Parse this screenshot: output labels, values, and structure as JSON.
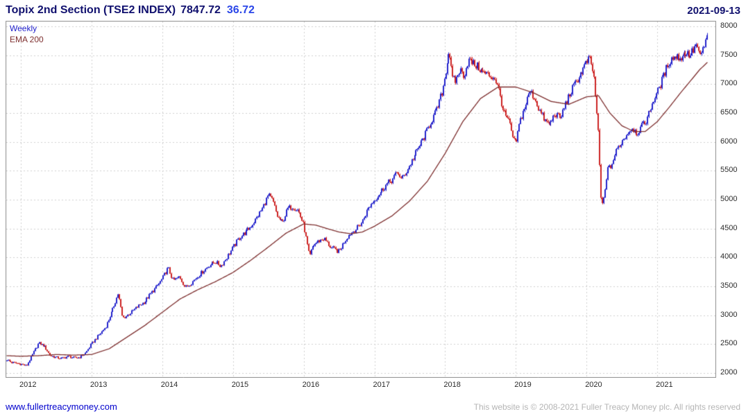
{
  "header": {
    "title": "Topix 2nd Section (TSE2 INDEX)",
    "last_price": "7847.72",
    "change": "36.72",
    "date": "2021-09-13"
  },
  "legend": {
    "series": "Weekly",
    "overlay": "EMA 200"
  },
  "footer": {
    "link": "www.fullertreacymoney.com",
    "copyright": "This website is © 2008-2021 Fuller Treacy Money plc. All rights reserved"
  },
  "colors": {
    "up": "#2222cc",
    "down": "#cc2222",
    "ema": "#7d2e2e",
    "grid": "#cfcfcf",
    "border": "#8c8c8c",
    "axis": "#2b2b2b",
    "title": "#10106e",
    "change": "#2a46e8",
    "link": "#0000cd",
    "copyright_text": "#b4b4b4"
  },
  "chart_data": {
    "type": "candlestick",
    "title": "Topix 2nd Section (TSE2 INDEX)",
    "timeframe": "Weekly",
    "overlay": "EMA 200",
    "last": 7847.72,
    "change": 36.72,
    "date": "2021-09-13",
    "ylim": [
      2000,
      8000
    ],
    "yticks": [
      2000,
      2500,
      3000,
      3500,
      4000,
      4500,
      5000,
      5500,
      6000,
      6500,
      7000,
      7500,
      8000
    ],
    "xticks": [
      2012,
      2013,
      2014,
      2015,
      2016,
      2017,
      2018,
      2019,
      2020,
      2021
    ],
    "x_range": [
      2011.8,
      2021.712
    ],
    "grid": true,
    "legend_position": "top-left",
    "price_anchors": [
      [
        2011.8,
        2230
      ],
      [
        2011.88,
        2180
      ],
      [
        2012.0,
        2160
      ],
      [
        2012.08,
        2120
      ],
      [
        2012.17,
        2330
      ],
      [
        2012.25,
        2520
      ],
      [
        2012.33,
        2470
      ],
      [
        2012.42,
        2300
      ],
      [
        2012.5,
        2270
      ],
      [
        2012.58,
        2250
      ],
      [
        2012.67,
        2290
      ],
      [
        2012.75,
        2260
      ],
      [
        2012.83,
        2270
      ],
      [
        2012.92,
        2350
      ],
      [
        2013.0,
        2500
      ],
      [
        2013.1,
        2650
      ],
      [
        2013.2,
        2800
      ],
      [
        2013.3,
        3100
      ],
      [
        2013.38,
        3380
      ],
      [
        2013.44,
        2950
      ],
      [
        2013.5,
        2990
      ],
      [
        2013.58,
        3070
      ],
      [
        2013.67,
        3170
      ],
      [
        2013.75,
        3230
      ],
      [
        2013.83,
        3360
      ],
      [
        2013.92,
        3490
      ],
      [
        2014.0,
        3630
      ],
      [
        2014.08,
        3820
      ],
      [
        2014.15,
        3600
      ],
      [
        2014.25,
        3670
      ],
      [
        2014.33,
        3480
      ],
      [
        2014.42,
        3570
      ],
      [
        2014.5,
        3670
      ],
      [
        2014.58,
        3770
      ],
      [
        2014.67,
        3870
      ],
      [
        2014.75,
        3930
      ],
      [
        2014.83,
        3850
      ],
      [
        2014.92,
        4010
      ],
      [
        2015.0,
        4170
      ],
      [
        2015.08,
        4330
      ],
      [
        2015.17,
        4430
      ],
      [
        2015.25,
        4530
      ],
      [
        2015.33,
        4670
      ],
      [
        2015.42,
        4860
      ],
      [
        2015.5,
        5080
      ],
      [
        2015.56,
        4980
      ],
      [
        2015.63,
        4700
      ],
      [
        2015.7,
        4600
      ],
      [
        2015.78,
        4850
      ],
      [
        2015.85,
        4880
      ],
      [
        2015.92,
        4820
      ],
      [
        2016.0,
        4550
      ],
      [
        2016.08,
        4000
      ],
      [
        2016.13,
        4200
      ],
      [
        2016.21,
        4280
      ],
      [
        2016.29,
        4330
      ],
      [
        2016.38,
        4180
      ],
      [
        2016.46,
        4120
      ],
      [
        2016.5,
        4100
      ],
      [
        2016.58,
        4300
      ],
      [
        2016.67,
        4420
      ],
      [
        2016.75,
        4500
      ],
      [
        2016.83,
        4620
      ],
      [
        2016.92,
        4870
      ],
      [
        2017.0,
        5000
      ],
      [
        2017.08,
        5120
      ],
      [
        2017.17,
        5260
      ],
      [
        2017.25,
        5340
      ],
      [
        2017.33,
        5480
      ],
      [
        2017.38,
        5350
      ],
      [
        2017.46,
        5500
      ],
      [
        2017.54,
        5700
      ],
      [
        2017.63,
        5900
      ],
      [
        2017.71,
        6100
      ],
      [
        2017.79,
        6320
      ],
      [
        2017.88,
        6550
      ],
      [
        2017.96,
        6880
      ],
      [
        2018.02,
        7300
      ],
      [
        2018.06,
        7620
      ],
      [
        2018.1,
        7100
      ],
      [
        2018.15,
        7050
      ],
      [
        2018.21,
        7250
      ],
      [
        2018.27,
        7150
      ],
      [
        2018.33,
        7420
      ],
      [
        2018.4,
        7350
      ],
      [
        2018.46,
        7300
      ],
      [
        2018.54,
        7200
      ],
      [
        2018.63,
        7150
      ],
      [
        2018.71,
        7100
      ],
      [
        2018.77,
        6850
      ],
      [
        2018.83,
        6500
      ],
      [
        2018.9,
        6350
      ],
      [
        2018.96,
        6050
      ],
      [
        2019.0,
        5950
      ],
      [
        2019.06,
        6350
      ],
      [
        2019.13,
        6600
      ],
      [
        2019.2,
        6880
      ],
      [
        2019.27,
        6750
      ],
      [
        2019.33,
        6550
      ],
      [
        2019.42,
        6350
      ],
      [
        2019.48,
        6300
      ],
      [
        2019.56,
        6500
      ],
      [
        2019.63,
        6400
      ],
      [
        2019.7,
        6650
      ],
      [
        2019.79,
        6900
      ],
      [
        2019.88,
        7100
      ],
      [
        2019.96,
        7280
      ],
      [
        2020.04,
        7450
      ],
      [
        2020.1,
        7200
      ],
      [
        2020.16,
        6300
      ],
      [
        2020.21,
        4850
      ],
      [
        2020.25,
        5050
      ],
      [
        2020.29,
        5500
      ],
      [
        2020.35,
        5600
      ],
      [
        2020.42,
        5850
      ],
      [
        2020.5,
        6000
      ],
      [
        2020.58,
        6150
      ],
      [
        2020.65,
        6250
      ],
      [
        2020.71,
        6150
      ],
      [
        2020.77,
        6250
      ],
      [
        2020.83,
        6350
      ],
      [
        2020.9,
        6550
      ],
      [
        2020.96,
        6750
      ],
      [
        2021.02,
        6900
      ],
      [
        2021.08,
        7100
      ],
      [
        2021.15,
        7350
      ],
      [
        2021.21,
        7450
      ],
      [
        2021.27,
        7480
      ],
      [
        2021.33,
        7450
      ],
      [
        2021.4,
        7550
      ],
      [
        2021.46,
        7500
      ],
      [
        2021.52,
        7600
      ],
      [
        2021.56,
        7700
      ],
      [
        2021.6,
        7440
      ],
      [
        2021.63,
        7550
      ],
      [
        2021.66,
        7650
      ],
      [
        2021.69,
        7750
      ],
      [
        2021.712,
        7847.72
      ]
    ],
    "ema_anchors": [
      [
        2011.8,
        2300
      ],
      [
        2012.0,
        2290
      ],
      [
        2012.25,
        2300
      ],
      [
        2012.5,
        2320
      ],
      [
        2012.75,
        2310
      ],
      [
        2013.0,
        2320
      ],
      [
        2013.25,
        2420
      ],
      [
        2013.5,
        2620
      ],
      [
        2013.75,
        2820
      ],
      [
        2014.0,
        3050
      ],
      [
        2014.25,
        3280
      ],
      [
        2014.5,
        3440
      ],
      [
        2014.75,
        3580
      ],
      [
        2015.0,
        3740
      ],
      [
        2015.25,
        3950
      ],
      [
        2015.5,
        4180
      ],
      [
        2015.75,
        4420
      ],
      [
        2016.0,
        4580
      ],
      [
        2016.17,
        4560
      ],
      [
        2016.33,
        4500
      ],
      [
        2016.5,
        4440
      ],
      [
        2016.67,
        4410
      ],
      [
        2016.83,
        4440
      ],
      [
        2017.0,
        4540
      ],
      [
        2017.25,
        4720
      ],
      [
        2017.5,
        4980
      ],
      [
        2017.75,
        5320
      ],
      [
        2018.0,
        5800
      ],
      [
        2018.25,
        6350
      ],
      [
        2018.5,
        6750
      ],
      [
        2018.75,
        6950
      ],
      [
        2019.0,
        6950
      ],
      [
        2019.25,
        6850
      ],
      [
        2019.5,
        6700
      ],
      [
        2019.75,
        6650
      ],
      [
        2020.0,
        6780
      ],
      [
        2020.17,
        6800
      ],
      [
        2020.33,
        6500
      ],
      [
        2020.5,
        6280
      ],
      [
        2020.67,
        6180
      ],
      [
        2020.83,
        6180
      ],
      [
        2021.0,
        6350
      ],
      [
        2021.17,
        6600
      ],
      [
        2021.33,
        6850
      ],
      [
        2021.5,
        7100
      ],
      [
        2021.6,
        7250
      ],
      [
        2021.712,
        7380
      ]
    ]
  }
}
